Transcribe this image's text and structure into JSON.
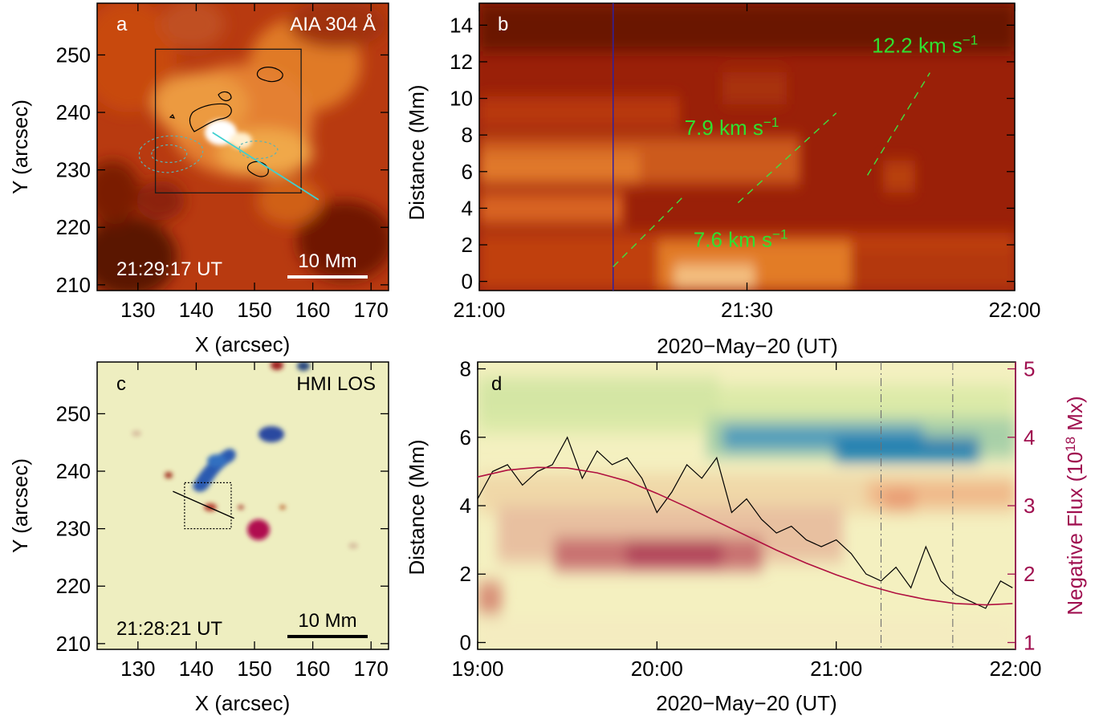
{
  "chart_data": [
    {
      "panel_label": "a",
      "type": "heatmap",
      "instrument_label": "AIA 304 Å",
      "timestamp": "21:29:17 UT",
      "scale_bar_label": "10 Mm",
      "xlabel": "X (arcsec)",
      "ylabel": "Y (arcsec)",
      "xlim": [
        123,
        173
      ],
      "ylim": [
        209,
        259
      ],
      "xticks": [
        130,
        140,
        150,
        160,
        170
      ],
      "yticks": [
        210,
        220,
        230,
        240,
        250
      ],
      "box": {
        "x": [
          133,
          158
        ],
        "y": [
          226,
          251
        ]
      },
      "slit": {
        "x": [
          142.8,
          161
        ],
        "y": [
          236.5,
          224.8
        ]
      },
      "colors": {
        "image": "#b83a10",
        "box": "#1a1a1a",
        "slit": "#40d0d0",
        "neg_contour": "#60b0b0"
      }
    },
    {
      "panel_label": "b",
      "type": "heatmap",
      "xlabel": "2020−May−20 (UT)",
      "ylabel": "Distance (Mm)",
      "xlim": [
        0,
        60
      ],
      "ylim": [
        -0.5,
        15.2
      ],
      "xticks": [
        {
          "value": 0,
          "label": "21:00"
        },
        {
          "value": 30,
          "label": "21:30"
        },
        {
          "value": 60,
          "label": "22:00"
        }
      ],
      "yticks": [
        0,
        2,
        4,
        6,
        8,
        10,
        12,
        14
      ],
      "marker_time": 15,
      "fits": [
        {
          "label": "7.6 km s",
          "superscript": "−1",
          "t": [
            15,
            23
          ],
          "d": [
            0.8,
            4.7
          ],
          "label_at": {
            "t": 24,
            "d": 1.9
          }
        },
        {
          "label": "7.9 km s",
          "superscript": "−1",
          "t": [
            29,
            40
          ],
          "d": [
            4.3,
            9.2
          ],
          "label_at": {
            "t": 23,
            "d": 8.0
          }
        },
        {
          "label": "12.2 km s",
          "superscript": "−1",
          "t": [
            43.5,
            50.5
          ],
          "d": [
            5.8,
            11.4
          ],
          "label_at": {
            "t": 44,
            "d": 12.5
          }
        }
      ],
      "colors": {
        "fit": "#40e040",
        "marker": "#3020a0",
        "label": "#30e030"
      }
    },
    {
      "panel_label": "c",
      "type": "heatmap",
      "instrument_label": "HMI LOS",
      "timestamp": "21:28:21 UT",
      "scale_bar_label": "10 Mm",
      "xlabel": "X (arcsec)",
      "ylabel": "Y (arcsec)",
      "xlim": [
        123,
        173
      ],
      "ylim": [
        209,
        259
      ],
      "xticks": [
        130,
        140,
        150,
        160,
        170
      ],
      "yticks": [
        210,
        220,
        230,
        240,
        250
      ],
      "box": {
        "x": [
          138,
          146
        ],
        "y": [
          230,
          238
        ]
      },
      "slit": {
        "x": [
          136,
          146.5
        ],
        "y": [
          236.5,
          231.8
        ]
      },
      "colors": {
        "background": "#eeeec0",
        "negative": "#2a5ab0",
        "positive": "#b01050"
      }
    },
    {
      "panel_label": "d",
      "type": "line",
      "xlabel": "2020−May−20 (UT)",
      "ylabel": "Distance (Mm)",
      "y2label": "Negative Flux (10",
      "y2label_superscript": "18",
      "y2label_suffix": " Mx)",
      "xlim": [
        0,
        180
      ],
      "ylim": [
        -0.2,
        8.2
      ],
      "y2lim": [
        0.9,
        5.1
      ],
      "xticks": [
        {
          "value": 0,
          "label": "19:00"
        },
        {
          "value": 60,
          "label": "20:00"
        },
        {
          "value": 120,
          "label": "21:00"
        },
        {
          "value": 180,
          "label": "22:00"
        }
      ],
      "yticks": [
        0,
        2,
        4,
        6,
        8
      ],
      "y2ticks": [
        1,
        2,
        3,
        4,
        5
      ],
      "vlines": [
        135,
        159
      ],
      "series": [
        {
          "x": [
            0,
            5,
            10,
            15,
            20,
            25,
            30,
            35,
            40,
            45,
            50,
            55,
            60,
            65,
            70,
            75,
            80,
            85,
            90,
            95,
            100,
            105,
            110,
            115,
            120,
            125,
            130,
            135,
            140,
            145,
            150,
            155,
            160,
            165,
            170,
            175,
            179
          ],
          "y": [
            3.1,
            3.5,
            3.6,
            3.3,
            3.5,
            3.6,
            4.0,
            3.4,
            3.8,
            3.6,
            3.7,
            3.4,
            2.9,
            3.2,
            3.6,
            3.4,
            3.7,
            2.9,
            3.1,
            2.8,
            2.6,
            2.7,
            2.5,
            2.4,
            2.5,
            2.3,
            2.0,
            1.9,
            2.1,
            1.8,
            2.4,
            1.9,
            1.7,
            1.6,
            1.5,
            1.9,
            1.8
          ],
          "color": "#000000"
        },
        {
          "x": [
            0,
            10,
            20,
            30,
            40,
            50,
            60,
            70,
            80,
            90,
            100,
            110,
            120,
            130,
            140,
            150,
            160,
            170,
            179
          ],
          "y": [
            3.42,
            3.52,
            3.56,
            3.55,
            3.48,
            3.36,
            3.18,
            2.98,
            2.77,
            2.56,
            2.35,
            2.16,
            1.99,
            1.84,
            1.72,
            1.63,
            1.57,
            1.55,
            1.57
          ],
          "color": "#b01040"
        }
      ],
      "colors": {
        "background": "#f4f0c0",
        "negative_band": "#1e7eb0",
        "positive_band": "#b04058",
        "y2": "#a01050"
      }
    }
  ]
}
